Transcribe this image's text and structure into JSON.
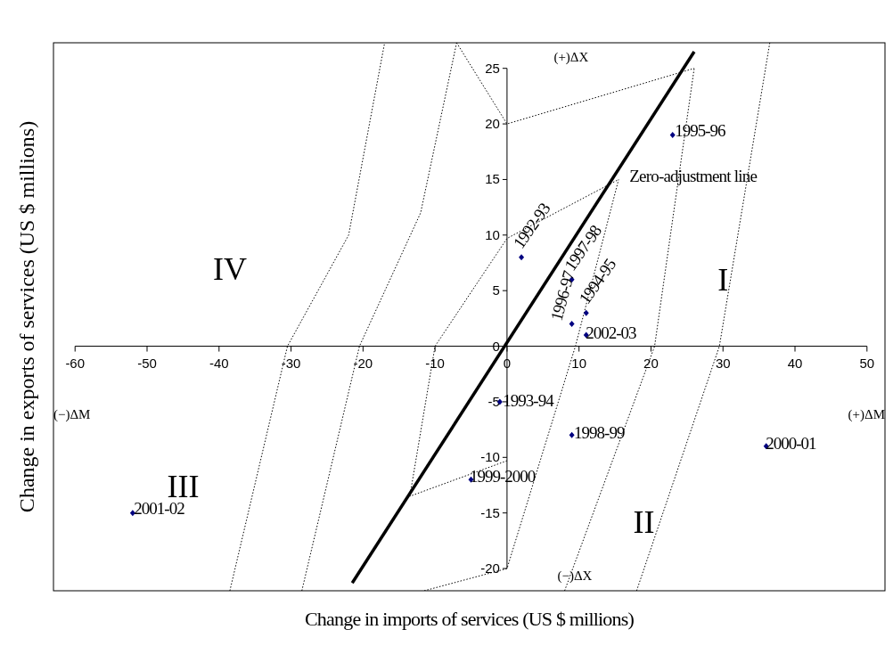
{
  "chart_data": {
    "type": "scatter",
    "xlabel": "Change in imports of services (US $ millions)",
    "ylabel": "Change in exports of services (US $ millions)",
    "xlim": [
      -63,
      52.5
    ],
    "ylim": [
      -22,
      27.3
    ],
    "xticks": [
      -60,
      -50,
      -40,
      -30,
      -20,
      -10,
      0,
      10,
      20,
      30,
      40,
      50
    ],
    "yticks": [
      -20,
      -15,
      -10,
      -5,
      0,
      5,
      10,
      15,
      20,
      25
    ],
    "series": [
      {
        "type": "line",
        "color": "#000000",
        "line_style": "dotted",
        "x": [
          -38.5,
          -30.5,
          -22,
          -17
        ],
        "values": [
          -22,
          0,
          10,
          27.3
        ]
      },
      {
        "type": "line",
        "color": "#000000",
        "line_style": "dotted",
        "x": [
          -28.5,
          -20.5,
          -12,
          -7
        ],
        "values": [
          -22,
          0,
          12,
          27.3
        ]
      },
      {
        "type": "line",
        "color": "#000000",
        "line_style": "dotted",
        "x": [
          -7,
          0,
          26
        ],
        "values": [
          27.3,
          20,
          25
        ]
      },
      {
        "type": "line",
        "color": "#000000",
        "line_style": "dotted",
        "x": [
          0,
          -13.5,
          -10,
          0,
          15.5
        ],
        "values": [
          -10.3,
          -13.5,
          0,
          9.7,
          15
        ]
      },
      {
        "type": "line",
        "color": "#000000",
        "line_style": "dotted",
        "x": [
          -11.5,
          0,
          9.5,
          15.5
        ],
        "values": [
          -22,
          -20,
          0,
          15
        ]
      },
      {
        "type": "line",
        "color": "#000000",
        "line_style": "dotted",
        "x": [
          8,
          20.5,
          26
        ],
        "values": [
          -22,
          0,
          25
        ]
      },
      {
        "type": "line",
        "color": "#000000",
        "line_style": "dotted",
        "x": [
          18,
          29.5,
          36.5
        ],
        "values": [
          -22,
          0,
          27.3
        ]
      },
      {
        "type": "line",
        "color": "#000000",
        "line_style": "solid",
        "x": [
          -21.5,
          26
        ],
        "values": [
          -21.3,
          26.5
        ]
      },
      {
        "marker": "diamond",
        "color": "#000080",
        "x": [
          2,
          -1,
          11,
          23,
          9,
          9,
          9,
          -5,
          36,
          -52,
          11
        ],
        "values": [
          8,
          -5,
          3,
          19,
          2,
          6,
          -8,
          -12,
          -9,
          -15,
          1
        ],
        "value_labels": [
          "1992-93",
          "1993-94",
          "1994-95",
          "1995-96",
          "1996-97",
          "1997-98",
          "1998-99",
          "1999-2000",
          "2000-01",
          "2001-02",
          "2002-03"
        ]
      }
    ],
    "annotations": [
      "Zero-adjustment line",
      "(+)ΔX",
      "(−)ΔX",
      "(−)ΔM",
      "(+)ΔM",
      "I",
      "II",
      "III",
      "IV"
    ]
  }
}
